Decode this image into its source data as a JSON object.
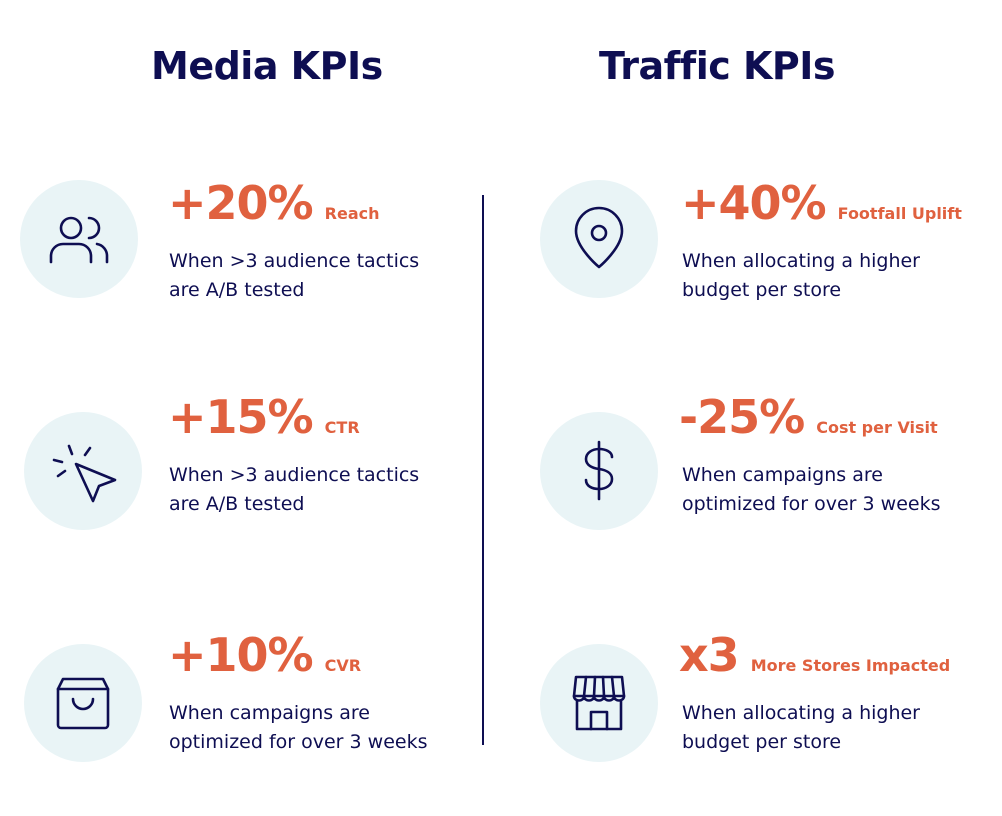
{
  "titles": {
    "media": "Media KPIs",
    "traffic": "Traffic KPIs"
  },
  "colors": {
    "navy": "#0e0e52",
    "accent": "#e0613f",
    "icon_bg": "#e9f4f6"
  },
  "media": [
    {
      "icon": "users-icon",
      "value": "+20%",
      "label": "Reach",
      "desc_line1": "When >3 audience tactics",
      "desc_line2": "are A/B tested"
    },
    {
      "icon": "cursor-click-icon",
      "value": "+15%",
      "label": "CTR",
      "desc_line1": "When >3 audience tactics",
      "desc_line2": "are A/B tested"
    },
    {
      "icon": "shopping-bag-icon",
      "value": "+10%",
      "label": "CVR",
      "desc_line1": "When campaigns are",
      "desc_line2": "optimized for over 3 weeks"
    }
  ],
  "traffic": [
    {
      "icon": "map-pin-icon",
      "value": "+40%",
      "label": "Footfall Uplift",
      "desc_line1": "When allocating a higher",
      "desc_line2": "budget per store"
    },
    {
      "icon": "dollar-icon",
      "value": "-25%",
      "label": "Cost per Visit",
      "desc_line1": "When campaigns are",
      "desc_line2": "optimized for over 3 weeks"
    },
    {
      "icon": "storefront-icon",
      "value": "x3",
      "label": "More Stores Impacted",
      "desc_line1": "When allocating a higher",
      "desc_line2": "budget per store"
    }
  ]
}
